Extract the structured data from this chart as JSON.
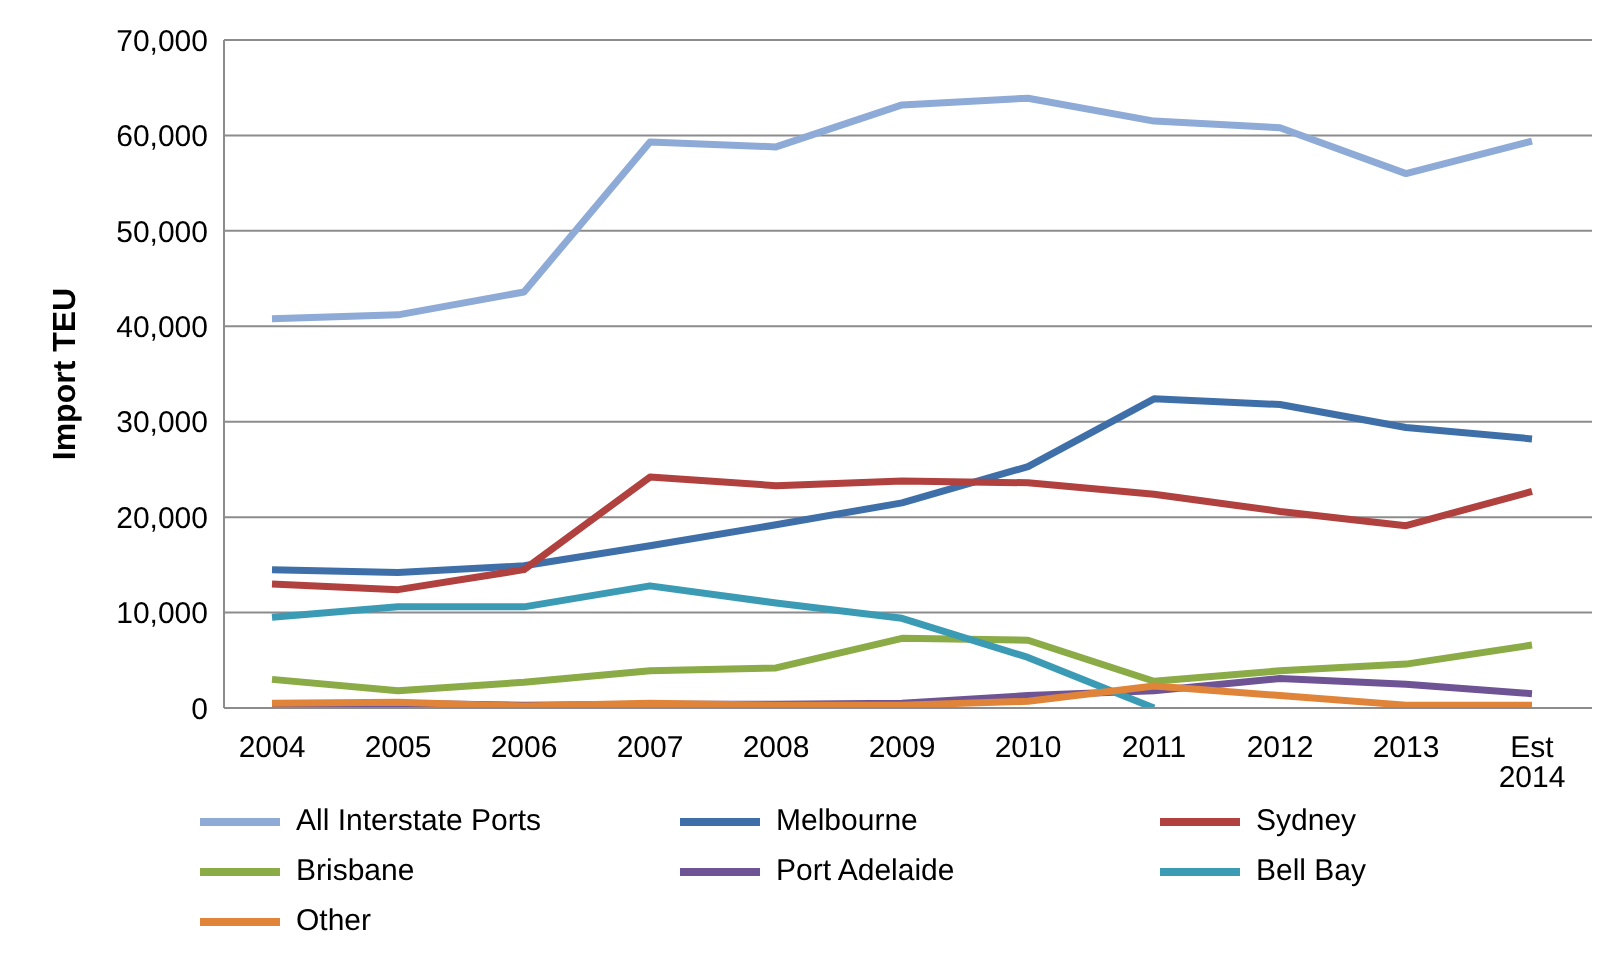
{
  "chart_data": {
    "type": "line",
    "ylabel": "Import TEU",
    "categories": [
      "2004",
      "2005",
      "2006",
      "2007",
      "2008",
      "2009",
      "2010",
      "2011",
      "2012",
      "2013",
      "Est 2014"
    ],
    "series": [
      {
        "name": "All Interstate Ports",
        "color": "#8eaad6",
        "values": [
          40800,
          41200,
          43600,
          59300,
          58800,
          63200,
          63900,
          61500,
          60800,
          56000,
          59400
        ]
      },
      {
        "name": "Melbourne",
        "color": "#3f6fa8",
        "values": [
          14500,
          14200,
          14900,
          17000,
          19200,
          21500,
          25300,
          32400,
          31800,
          29400,
          28200
        ]
      },
      {
        "name": "Sydney",
        "color": "#b0413e",
        "values": [
          13000,
          12400,
          14500,
          24200,
          23300,
          23800,
          23600,
          22400,
          20600,
          19100,
          22700
        ]
      },
      {
        "name": "Brisbane",
        "color": "#8aab46",
        "values": [
          3000,
          1800,
          2700,
          3900,
          4200,
          7300,
          7100,
          2800,
          3900,
          4600,
          6600
        ]
      },
      {
        "name": "Port Adelaide",
        "color": "#6e5495",
        "values": [
          300,
          500,
          300,
          400,
          400,
          500,
          1300,
          1800,
          3100,
          2500,
          1500
        ]
      },
      {
        "name": "Bell Bay",
        "color": "#3b9bb5",
        "values": [
          9500,
          10600,
          10600,
          12800,
          11000,
          9400,
          5300,
          0,
          null,
          null,
          null
        ]
      },
      {
        "name": "Other",
        "color": "#e0843a",
        "values": [
          500,
          600,
          200,
          500,
          300,
          300,
          700,
          2300,
          1300,
          300,
          300
        ]
      }
    ],
    "ylim": [
      0,
      70000
    ],
    "yticks": [
      0,
      {
        "value": 10000,
        "label": "10,000"
      },
      {
        "value": 20000,
        "label": "20,000"
      },
      {
        "value": 30000,
        "label": "30,000"
      },
      {
        "value": 40000,
        "label": "40,000"
      },
      {
        "value": 50000,
        "label": "50,000"
      },
      {
        "value": 60000,
        "label": "60,000"
      },
      {
        "value": 70000,
        "label": "70,000"
      }
    ],
    "grid": "y",
    "legend": "bottom",
    "marker": "none",
    "line_style": "solid"
  }
}
